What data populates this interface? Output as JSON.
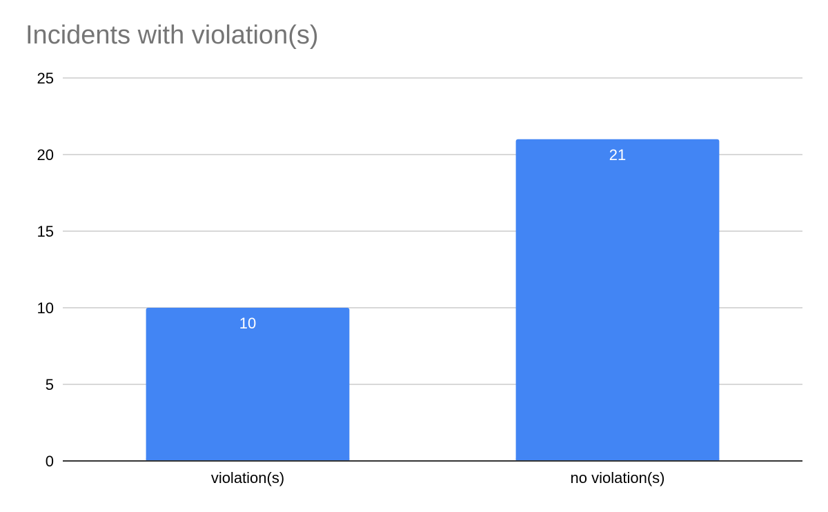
{
  "chart_data": {
    "type": "bar",
    "title": "Incidents with violation(s)",
    "categories": [
      "violation(s)",
      "no violation(s)"
    ],
    "values": [
      10,
      21
    ],
    "ylim": [
      0,
      25
    ],
    "yticks": [
      0,
      5,
      10,
      15,
      20,
      25
    ],
    "grid": true,
    "legend": "none",
    "data_labels": true,
    "bar_color": "#4285f4",
    "grid_color": "#cccccc",
    "axis_color": "#333333"
  }
}
